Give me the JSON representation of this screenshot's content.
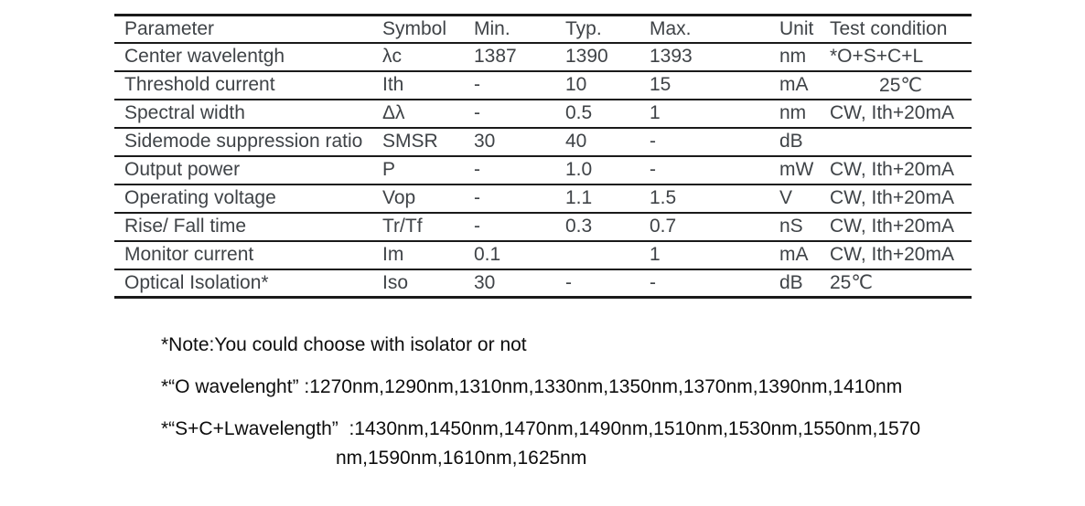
{
  "table": {
    "columns": [
      "Parameter",
      "Symbol",
      "Min.",
      "Typ.",
      "Max.",
      "Unit",
      "Test condition"
    ],
    "rows": [
      {
        "parameter": "Center wavelentgh",
        "symbol": "λc",
        "min": "1387",
        "typ": "1390",
        "max": "1393",
        "unit": "nm",
        "test_condition": "*O+S+C+L",
        "test_align": "left"
      },
      {
        "parameter": "Threshold current",
        "symbol": "Ith",
        "min": "-",
        "typ": "10",
        "max": "15",
        "unit": "mA",
        "test_condition": "25℃",
        "test_align": "center"
      },
      {
        "parameter": "Spectral width",
        "symbol": "Δλ",
        "min": "-",
        "typ": "0.5",
        "max": "1",
        "unit": "nm",
        "test_condition": "CW, Ith+20mA",
        "test_align": "left"
      },
      {
        "parameter": "Sidemode suppression ratio",
        "symbol": "SMSR",
        "min": "30",
        "typ": "40",
        "max": "-",
        "unit": "dB",
        "test_condition": "",
        "test_align": "left"
      },
      {
        "parameter": "Output power",
        "symbol": "P",
        "min": "-",
        "typ": "1.0",
        "max": "-",
        "unit": "mW",
        "test_condition": "CW, Ith+20mA",
        "test_align": "left"
      },
      {
        "parameter": "Operating voltage",
        "symbol": "Vop",
        "min": "-",
        "typ": "1.1",
        "max": "1.5",
        "unit": "V",
        "test_condition": "CW, Ith+20mA",
        "test_align": "left"
      },
      {
        "parameter": "Rise/ Fall time",
        "symbol": "Tr/Tf",
        "min": "-",
        "typ": "0.3",
        "max": "0.7",
        "unit": "nS",
        "test_condition": "CW, Ith+20mA",
        "test_align": "left"
      },
      {
        "parameter": "Monitor current",
        "symbol": "Im",
        "min": "0.1",
        "typ": "",
        "max": "1",
        "unit": "mA",
        "test_condition": "CW, Ith+20mA",
        "test_align": "left"
      },
      {
        "parameter": "Optical Isolation*",
        "symbol": "Iso",
        "min": "30",
        "typ": "-",
        "max": "-",
        "unit": "dB",
        "test_condition": "25℃",
        "test_align": "left"
      }
    ]
  },
  "notes": {
    "note1": "*Note:You could choose with isolator or not",
    "note2": "*“O wavelenght” :1270nm,1290nm,1310nm,1330nm,1350nm,1370nm,1390nm,1410nm",
    "note3_line1": "*“S+C+Lwavelength”  :1430nm,1450nm,1470nm,1490nm,1510nm,1530nm,1550nm,1570",
    "note3_line2": "nm,1590nm,1610nm,1625nm"
  }
}
